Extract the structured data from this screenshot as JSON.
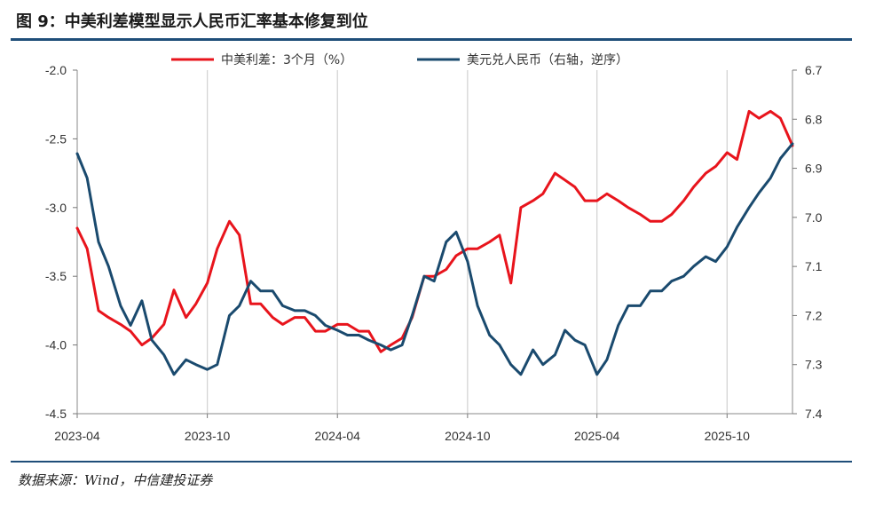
{
  "title": "图 9：中美利差模型显示人民币汇率基本修复到位",
  "source": "数据来源：Wind，中信建投证券",
  "chart_data": {
    "type": "line",
    "title": "图 9：中美利差模型显示人民币汇率基本修复到位",
    "x_tick_labels": [
      "2023-04",
      "2023-10",
      "2024-04",
      "2024-10",
      "2025-04",
      "2025-10"
    ],
    "x_range": [
      "2023-04",
      "2026-01"
    ],
    "y_left": {
      "range": [
        -4.5,
        -2.0
      ],
      "ticks": [
        "-2.0",
        "-2.5",
        "-3.0",
        "-3.5",
        "-4.0",
        "-4.5"
      ]
    },
    "y_right": {
      "range": [
        6.7,
        7.4
      ],
      "inverted": true,
      "ticks": [
        "6.7",
        "6.8",
        "6.9",
        "7.0",
        "7.1",
        "7.2",
        "7.3",
        "7.4"
      ]
    },
    "grid": "vertical",
    "legend_position": "top",
    "series": [
      {
        "name": "中美利差：3个月（%）",
        "axis": "left",
        "color": "#e8141c",
        "x": [
          "2023-04-01",
          "2023-04-15",
          "2023-05-01",
          "2023-05-15",
          "2023-06-01",
          "2023-06-15",
          "2023-07-01",
          "2023-07-15",
          "2023-08-01",
          "2023-08-15",
          "2023-09-01",
          "2023-09-15",
          "2023-10-01",
          "2023-10-15",
          "2023-11-01",
          "2023-11-15",
          "2023-12-01",
          "2023-12-15",
          "2024-01-01",
          "2024-01-15",
          "2024-02-01",
          "2024-02-15",
          "2024-03-01",
          "2024-03-15",
          "2024-04-01",
          "2024-04-15",
          "2024-05-01",
          "2024-05-15",
          "2024-06-01",
          "2024-06-15",
          "2024-07-01",
          "2024-07-15",
          "2024-08-01",
          "2024-08-15",
          "2024-09-01",
          "2024-09-15",
          "2024-10-01",
          "2024-10-15",
          "2024-11-01",
          "2024-11-15",
          "2024-12-01",
          "2024-12-15",
          "2025-01-01",
          "2025-01-15",
          "2025-02-01",
          "2025-02-15",
          "2025-03-01",
          "2025-03-15",
          "2025-04-01",
          "2025-04-15",
          "2025-05-01",
          "2025-05-15",
          "2025-06-01",
          "2025-06-15",
          "2025-07-01",
          "2025-07-15",
          "2025-08-01",
          "2025-08-15",
          "2025-09-01",
          "2025-09-15",
          "2025-10-01",
          "2025-10-15",
          "2025-11-01",
          "2025-11-15",
          "2025-12-01",
          "2025-12-15",
          "2026-01-01"
        ],
        "y": [
          -3.15,
          -3.3,
          -3.75,
          -3.8,
          -3.85,
          -3.9,
          -4.0,
          -3.95,
          -3.85,
          -3.6,
          -3.8,
          -3.7,
          -3.55,
          -3.3,
          -3.1,
          -3.2,
          -3.7,
          -3.7,
          -3.8,
          -3.85,
          -3.8,
          -3.8,
          -3.9,
          -3.9,
          -3.85,
          -3.85,
          -3.9,
          -3.9,
          -4.05,
          -4.0,
          -3.95,
          -3.8,
          -3.5,
          -3.5,
          -3.45,
          -3.35,
          -3.3,
          -3.3,
          -3.25,
          -3.2,
          -3.55,
          -3.0,
          -2.95,
          -2.9,
          -2.75,
          -2.8,
          -2.85,
          -2.95,
          -2.95,
          -2.9,
          -2.95,
          -3.0,
          -3.05,
          -3.1,
          -3.1,
          -3.05,
          -2.95,
          -2.85,
          -2.75,
          -2.7,
          -2.6,
          -2.65,
          -2.3,
          -2.35,
          -2.3,
          -2.35,
          -2.55
        ]
      },
      {
        "name": "美元兑人民币（右轴，逆序）",
        "axis": "right",
        "color": "#1a4a6e",
        "x": [
          "2023-04-01",
          "2023-04-15",
          "2023-05-01",
          "2023-05-15",
          "2023-06-01",
          "2023-06-15",
          "2023-07-01",
          "2023-07-15",
          "2023-08-01",
          "2023-08-15",
          "2023-09-01",
          "2023-09-15",
          "2023-10-01",
          "2023-10-15",
          "2023-11-01",
          "2023-11-15",
          "2023-12-01",
          "2023-12-15",
          "2024-01-01",
          "2024-01-15",
          "2024-02-01",
          "2024-02-15",
          "2024-03-01",
          "2024-03-15",
          "2024-04-01",
          "2024-04-15",
          "2024-05-01",
          "2024-05-15",
          "2024-06-01",
          "2024-06-15",
          "2024-07-01",
          "2024-07-15",
          "2024-08-01",
          "2024-08-15",
          "2024-09-01",
          "2024-09-15",
          "2024-10-01",
          "2024-10-15",
          "2024-11-01",
          "2024-11-15",
          "2024-12-01",
          "2024-12-15",
          "2025-01-01",
          "2025-01-15",
          "2025-02-01",
          "2025-02-15",
          "2025-03-01",
          "2025-03-15",
          "2025-04-01",
          "2025-04-15",
          "2025-05-01",
          "2025-05-15",
          "2025-06-01",
          "2025-06-15",
          "2025-07-01",
          "2025-07-15",
          "2025-08-01",
          "2025-08-15",
          "2025-09-01",
          "2025-09-15",
          "2025-10-01",
          "2025-10-15",
          "2025-11-01",
          "2025-11-15",
          "2025-12-01",
          "2025-12-15",
          "2026-01-01"
        ],
        "y": [
          6.87,
          6.92,
          7.05,
          7.1,
          7.18,
          7.22,
          7.17,
          7.25,
          7.28,
          7.32,
          7.29,
          7.3,
          7.31,
          7.3,
          7.2,
          7.18,
          7.13,
          7.15,
          7.15,
          7.18,
          7.19,
          7.19,
          7.2,
          7.22,
          7.23,
          7.24,
          7.24,
          7.25,
          7.26,
          7.27,
          7.26,
          7.2,
          7.12,
          7.13,
          7.05,
          7.03,
          7.09,
          7.18,
          7.24,
          7.26,
          7.3,
          7.32,
          7.27,
          7.3,
          7.28,
          7.23,
          7.25,
          7.26,
          7.32,
          7.29,
          7.22,
          7.18,
          7.18,
          7.15,
          7.15,
          7.13,
          7.12,
          7.1,
          7.08,
          7.09,
          7.06,
          7.02,
          6.98,
          6.95,
          6.92,
          6.88,
          6.85
        ]
      }
    ]
  }
}
